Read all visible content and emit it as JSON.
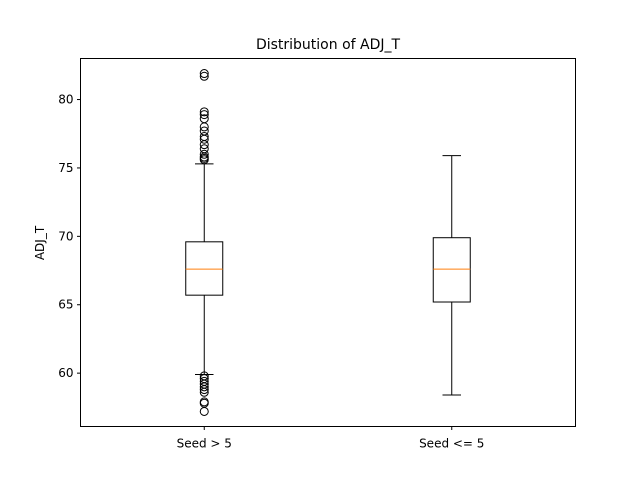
{
  "chart_data": {
    "type": "box",
    "title": "Distribution of ADJ_T",
    "xlabel": "",
    "ylabel": "ADJ_T",
    "ylim": [
      56.1,
      83.0
    ],
    "yticks": [
      60,
      65,
      70,
      75,
      80
    ],
    "grid": false,
    "categories": [
      "Seed > 5",
      "Seed <= 5"
    ],
    "boxes": [
      {
        "label": "Seed > 5",
        "whisker_low": 59.9,
        "q1": 65.7,
        "median": 67.6,
        "q3": 69.6,
        "whisker_high": 75.3,
        "outliers": [
          81.9,
          81.7,
          79.1,
          78.9,
          78.6,
          78.0,
          77.7,
          77.3,
          77.1,
          76.7,
          76.4,
          76.0,
          75.8,
          75.7,
          75.6,
          59.8,
          59.6,
          59.4,
          59.2,
          59.0,
          58.8,
          58.6,
          57.9,
          57.8,
          57.2
        ]
      },
      {
        "label": "Seed <= 5",
        "whisker_low": 58.4,
        "q1": 65.2,
        "median": 67.6,
        "q3": 69.9,
        "whisker_high": 75.9,
        "outliers": []
      }
    ],
    "colors": {
      "box": "#000000",
      "median": "#ff7f0e",
      "outlier_edge": "#000000"
    }
  }
}
